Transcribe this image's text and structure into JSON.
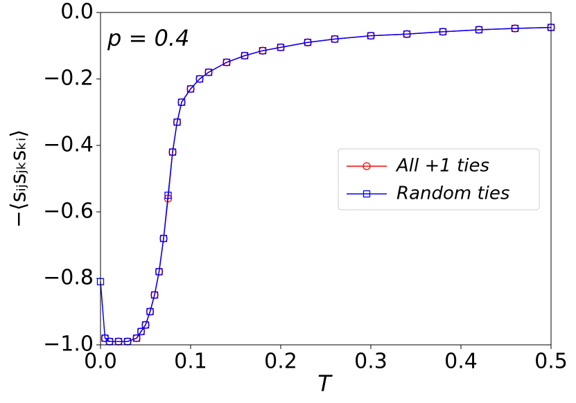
{
  "chart_data": {
    "type": "line",
    "xlabel": "T",
    "ylabel": "−⟨sᵢⱼsⱼₖsₖᵢ⟩",
    "annotation": "p =  0.4",
    "xlim": [
      0,
      0.5
    ],
    "ylim": [
      -1,
      0
    ],
    "xticks": [
      {
        "value": 0,
        "label": "0.0"
      },
      0.1,
      0.2,
      0.3,
      0.4,
      0.5
    ],
    "yticks": [
      {
        "value": -1,
        "label": "−1.0"
      },
      {
        "value": -0.8,
        "label": "−0.8"
      },
      {
        "value": -0.6,
        "label": "−0.6"
      },
      {
        "value": -0.4,
        "label": "−0.4"
      },
      {
        "value": -0.2,
        "label": "−0.2"
      },
      {
        "value": 0,
        "label": "0.0"
      }
    ],
    "legend": "right",
    "series": [
      {
        "name": "All +1 ties",
        "color": "#ff0000",
        "marker": "circle",
        "x": [
          0.005,
          0.01,
          0.02,
          0.03,
          0.04,
          0.045,
          0.05,
          0.055,
          0.06,
          0.065,
          0.07,
          0.075,
          0.08,
          0.085,
          0.09,
          0.1,
          0.11,
          0.12,
          0.14,
          0.16,
          0.18,
          0.2,
          0.23,
          0.26,
          0.3,
          0.34,
          0.38,
          0.42,
          0.46,
          0.5
        ],
        "values": [
          -0.98,
          -0.99,
          -0.99,
          -0.99,
          -0.98,
          -0.96,
          -0.94,
          -0.9,
          -0.85,
          -0.78,
          -0.68,
          -0.56,
          -0.42,
          -0.33,
          -0.27,
          -0.23,
          -0.2,
          -0.18,
          -0.15,
          -0.13,
          -0.115,
          -0.105,
          -0.09,
          -0.08,
          -0.07,
          -0.065,
          -0.058,
          -0.052,
          -0.048,
          -0.045
        ]
      },
      {
        "name": "Random ties",
        "color": "#0000ff",
        "marker": "square",
        "x": [
          0,
          0.005,
          0.01,
          0.02,
          0.03,
          0.04,
          0.045,
          0.05,
          0.055,
          0.06,
          0.065,
          0.07,
          0.075,
          0.08,
          0.085,
          0.09,
          0.1,
          0.11,
          0.12,
          0.14,
          0.16,
          0.18,
          0.2,
          0.23,
          0.26,
          0.3,
          0.34,
          0.38,
          0.42,
          0.46,
          0.5
        ],
        "values": [
          -0.81,
          -0.98,
          -0.99,
          -0.99,
          -0.99,
          -0.98,
          -0.96,
          -0.94,
          -0.9,
          -0.85,
          -0.78,
          -0.68,
          -0.55,
          -0.42,
          -0.33,
          -0.27,
          -0.23,
          -0.2,
          -0.18,
          -0.15,
          -0.13,
          -0.115,
          -0.105,
          -0.09,
          -0.08,
          -0.07,
          -0.065,
          -0.058,
          -0.052,
          -0.048,
          -0.045
        ]
      }
    ]
  }
}
